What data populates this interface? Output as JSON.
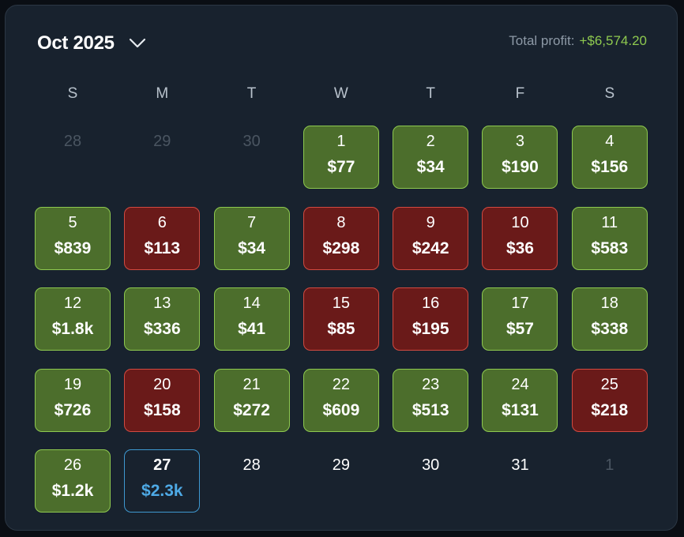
{
  "header": {
    "month_label": "Oct 2025",
    "total_profit_label": "Total profit:",
    "total_profit_value": "+$6,574.20"
  },
  "weekdays": [
    "S",
    "M",
    "T",
    "W",
    "T",
    "F",
    "S"
  ],
  "colors": {
    "win_bg": "#4c6e2c",
    "win_border": "#8ec94f",
    "loss_bg": "#6a1a19",
    "loss_border": "#d24a40",
    "today_border": "#3e98d0",
    "today_text": "#4eaae6",
    "profit_text": "#8ec94f"
  },
  "days": [
    {
      "day": "28",
      "amount": "",
      "status": "muted"
    },
    {
      "day": "29",
      "amount": "",
      "status": "muted"
    },
    {
      "day": "30",
      "amount": "",
      "status": "muted"
    },
    {
      "day": "1",
      "amount": "$77",
      "status": "win"
    },
    {
      "day": "2",
      "amount": "$34",
      "status": "win"
    },
    {
      "day": "3",
      "amount": "$190",
      "status": "win"
    },
    {
      "day": "4",
      "amount": "$156",
      "status": "win"
    },
    {
      "day": "5",
      "amount": "$839",
      "status": "win"
    },
    {
      "day": "6",
      "amount": "$113",
      "status": "loss"
    },
    {
      "day": "7",
      "amount": "$34",
      "status": "win"
    },
    {
      "day": "8",
      "amount": "$298",
      "status": "loss"
    },
    {
      "day": "9",
      "amount": "$242",
      "status": "loss"
    },
    {
      "day": "10",
      "amount": "$36",
      "status": "loss"
    },
    {
      "day": "11",
      "amount": "$583",
      "status": "win"
    },
    {
      "day": "12",
      "amount": "$1.8k",
      "status": "win"
    },
    {
      "day": "13",
      "amount": "$336",
      "status": "win"
    },
    {
      "day": "14",
      "amount": "$41",
      "status": "win"
    },
    {
      "day": "15",
      "amount": "$85",
      "status": "loss"
    },
    {
      "day": "16",
      "amount": "$195",
      "status": "loss"
    },
    {
      "day": "17",
      "amount": "$57",
      "status": "win"
    },
    {
      "day": "18",
      "amount": "$338",
      "status": "win"
    },
    {
      "day": "19",
      "amount": "$726",
      "status": "win"
    },
    {
      "day": "20",
      "amount": "$158",
      "status": "loss"
    },
    {
      "day": "21",
      "amount": "$272",
      "status": "win"
    },
    {
      "day": "22",
      "amount": "$609",
      "status": "win"
    },
    {
      "day": "23",
      "amount": "$513",
      "status": "win"
    },
    {
      "day": "24",
      "amount": "$131",
      "status": "win"
    },
    {
      "day": "25",
      "amount": "$218",
      "status": "loss"
    },
    {
      "day": "26",
      "amount": "$1.2k",
      "status": "win"
    },
    {
      "day": "27",
      "amount": "$2.3k",
      "status": "today"
    },
    {
      "day": "28",
      "amount": "",
      "status": "plain"
    },
    {
      "day": "29",
      "amount": "",
      "status": "plain"
    },
    {
      "day": "30",
      "amount": "",
      "status": "plain"
    },
    {
      "day": "31",
      "amount": "",
      "status": "plain"
    },
    {
      "day": "1",
      "amount": "",
      "status": "muted"
    }
  ]
}
